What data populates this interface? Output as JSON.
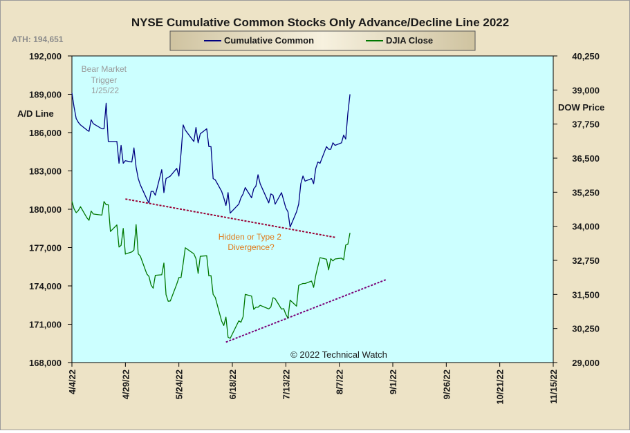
{
  "chart_data": {
    "type": "line",
    "title": "NYSE Cumulative  Common Stocks Only Advance/Decline  Line 2022",
    "ath_label": "ATH: 194,651",
    "watermark": "© 2022 Technical Watch",
    "ylabel_left": "A/D Line",
    "ylabel_right": "DOW Price",
    "ylim_left": [
      168000,
      192000
    ],
    "ylim_right": [
      29000,
      40250
    ],
    "yticks_left": [
      "192,000",
      "189,000",
      "186,000",
      "183,000",
      "180,000",
      "177,000",
      "174,000",
      "171,000",
      "168,000"
    ],
    "yticks_right": [
      "40,250",
      "39,000",
      "37,750",
      "36,500",
      "35,250",
      "34,000",
      "32,750",
      "31,500",
      "30,250",
      "29,000"
    ],
    "xticks": [
      "4/4/22",
      "4/29/22",
      "5/24/22",
      "6/18/22",
      "7/13/22",
      "8/7/22",
      "9/1/22",
      "9/26/22",
      "10/21/22",
      "11/15/22"
    ],
    "xlim": [
      "2022-04-04",
      "2022-11-15"
    ],
    "grid": false,
    "plot_background": "#ccffff",
    "legend_position": "top-center",
    "series": [
      {
        "name": "Cumulative Common",
        "axis": "left",
        "color": "#000080",
        "x": [
          "2022-04-04",
          "2022-04-05",
          "2022-04-06",
          "2022-04-07",
          "2022-04-08",
          "2022-04-11",
          "2022-04-12",
          "2022-04-13",
          "2022-04-14",
          "2022-04-18",
          "2022-04-19",
          "2022-04-20",
          "2022-04-21",
          "2022-04-22",
          "2022-04-25",
          "2022-04-26",
          "2022-04-27",
          "2022-04-28",
          "2022-04-29",
          "2022-05-02",
          "2022-05-03",
          "2022-05-04",
          "2022-05-05",
          "2022-05-06",
          "2022-05-09",
          "2022-05-10",
          "2022-05-11",
          "2022-05-12",
          "2022-05-13",
          "2022-05-16",
          "2022-05-17",
          "2022-05-18",
          "2022-05-19",
          "2022-05-20",
          "2022-05-23",
          "2022-05-24",
          "2022-05-25",
          "2022-05-26",
          "2022-05-27",
          "2022-05-31",
          "2022-06-01",
          "2022-06-02",
          "2022-06-03",
          "2022-06-06",
          "2022-06-07",
          "2022-06-08",
          "2022-06-09",
          "2022-06-10",
          "2022-06-13",
          "2022-06-14",
          "2022-06-15",
          "2022-06-16",
          "2022-06-17",
          "2022-06-21",
          "2022-06-22",
          "2022-06-23",
          "2022-06-24",
          "2022-06-27",
          "2022-06-28",
          "2022-06-29",
          "2022-06-30",
          "2022-07-01",
          "2022-07-05",
          "2022-07-06",
          "2022-07-07",
          "2022-07-08",
          "2022-07-11",
          "2022-07-12",
          "2022-07-13",
          "2022-07-14",
          "2022-07-15",
          "2022-07-18",
          "2022-07-19",
          "2022-07-20",
          "2022-07-21",
          "2022-07-22",
          "2022-07-25",
          "2022-07-26",
          "2022-07-27",
          "2022-07-28",
          "2022-07-29",
          "2022-08-01",
          "2022-08-02",
          "2022-08-03",
          "2022-08-04",
          "2022-08-05",
          "2022-08-08",
          "2022-08-09",
          "2022-08-10",
          "2022-08-11",
          "2022-08-12"
        ],
        "values": [
          189100,
          188000,
          187100,
          186800,
          186600,
          186200,
          186100,
          187000,
          186700,
          186300,
          186300,
          188300,
          185300,
          185300,
          185300,
          183600,
          185000,
          183600,
          183800,
          183700,
          184800,
          183300,
          182400,
          181900,
          180800,
          180500,
          181400,
          181400,
          181100,
          183100,
          181300,
          182400,
          182500,
          182600,
          183200,
          182600,
          184400,
          186600,
          186200,
          185300,
          186400,
          185200,
          185900,
          186300,
          184900,
          184900,
          182400,
          182300,
          181400,
          180900,
          180300,
          181300,
          179700,
          180400,
          180900,
          181200,
          181700,
          180900,
          181600,
          181800,
          182700,
          182000,
          180500,
          181200,
          181100,
          180400,
          181300,
          180700,
          180100,
          179800,
          178600,
          179800,
          180400,
          182000,
          182600,
          182200,
          182400,
          182000,
          183200,
          183700,
          183600,
          184900,
          184700,
          184700,
          185200,
          185000,
          185200,
          185800,
          185500,
          187500,
          189000
        ]
      },
      {
        "name": "DJIA Close",
        "axis": "right",
        "color": "#007700",
        "x": [
          "2022-04-04",
          "2022-04-05",
          "2022-04-06",
          "2022-04-07",
          "2022-04-08",
          "2022-04-11",
          "2022-04-12",
          "2022-04-13",
          "2022-04-14",
          "2022-04-18",
          "2022-04-19",
          "2022-04-20",
          "2022-04-21",
          "2022-04-22",
          "2022-04-25",
          "2022-04-26",
          "2022-04-27",
          "2022-04-28",
          "2022-04-29",
          "2022-05-02",
          "2022-05-03",
          "2022-05-04",
          "2022-05-05",
          "2022-05-06",
          "2022-05-09",
          "2022-05-10",
          "2022-05-11",
          "2022-05-12",
          "2022-05-13",
          "2022-05-16",
          "2022-05-17",
          "2022-05-18",
          "2022-05-19",
          "2022-05-20",
          "2022-05-23",
          "2022-05-24",
          "2022-05-25",
          "2022-05-26",
          "2022-05-27",
          "2022-05-31",
          "2022-06-01",
          "2022-06-02",
          "2022-06-03",
          "2022-06-06",
          "2022-06-07",
          "2022-06-08",
          "2022-06-09",
          "2022-06-10",
          "2022-06-13",
          "2022-06-14",
          "2022-06-15",
          "2022-06-16",
          "2022-06-17",
          "2022-06-21",
          "2022-06-22",
          "2022-06-23",
          "2022-06-24",
          "2022-06-27",
          "2022-06-28",
          "2022-06-29",
          "2022-06-30",
          "2022-07-01",
          "2022-07-05",
          "2022-07-06",
          "2022-07-07",
          "2022-07-08",
          "2022-07-11",
          "2022-07-12",
          "2022-07-13",
          "2022-07-14",
          "2022-07-15",
          "2022-07-18",
          "2022-07-19",
          "2022-07-20",
          "2022-07-21",
          "2022-07-22",
          "2022-07-25",
          "2022-07-26",
          "2022-07-27",
          "2022-07-28",
          "2022-07-29",
          "2022-08-01",
          "2022-08-02",
          "2022-08-03",
          "2022-08-04",
          "2022-08-05",
          "2022-08-08",
          "2022-08-09",
          "2022-08-10",
          "2022-08-11",
          "2022-08-12"
        ],
        "values": [
          34920,
          34640,
          34500,
          34580,
          34720,
          34310,
          34220,
          34560,
          34450,
          34410,
          34910,
          34790,
          34790,
          33810,
          34050,
          33240,
          33300,
          33920,
          32980,
          33060,
          33130,
          34060,
          32990,
          32900,
          32250,
          32160,
          31840,
          31730,
          32200,
          32220,
          32650,
          31490,
          31250,
          31260,
          31880,
          32120,
          32120,
          32640,
          33210,
          32990,
          32810,
          32270,
          32900,
          32920,
          32180,
          32190,
          31500,
          31390,
          30520,
          30360,
          30670,
          29930,
          29890,
          30530,
          30480,
          30680,
          31500,
          31440,
          30950,
          31030,
          31030,
          31100,
          30970,
          31040,
          31380,
          31340,
          30960,
          30980,
          30770,
          30630,
          31290,
          31070,
          31830,
          31870,
          31900,
          31900,
          31990,
          31760,
          32200,
          32530,
          32850,
          32790,
          32400,
          32810,
          32730,
          32800,
          32830,
          32770,
          33310,
          33340,
          33760
        ]
      }
    ],
    "annotations": [
      {
        "text_lines": [
          "Bear Market",
          "Trigger",
          "1/25/22"
        ],
        "color": "#9a9a9a"
      },
      {
        "text_lines": [
          "Hidden  or Type 2",
          "Divergence?"
        ],
        "color": "#e07818"
      }
    ],
    "trendlines": [
      {
        "axis": "left",
        "x": [
          "2022-04-29",
          "2022-08-05"
        ],
        "values": [
          180800,
          177800
        ],
        "color": "#990033",
        "style": "dashed"
      },
      {
        "axis": "left",
        "x": [
          "2022-06-15",
          "2022-08-29"
        ],
        "values": [
          169600,
          174500
        ],
        "color": "#7a0077",
        "style": "dashed"
      }
    ]
  }
}
